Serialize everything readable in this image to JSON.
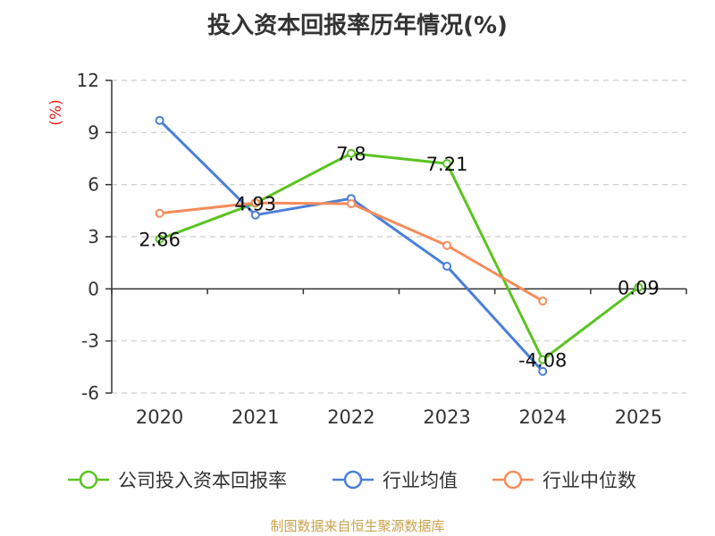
{
  "title": "投入资本回报率历年情况(%)",
  "source": "制图数据来自恒生聚源数据库",
  "chart_data": {
    "type": "line",
    "title": "投入资本回报率历年情况(%)",
    "ylabel": "(%)",
    "ylim": [
      -6,
      12
    ],
    "yticks": [
      12,
      9,
      6,
      3,
      0,
      -3,
      -6
    ],
    "categories": [
      "2020",
      "2021",
      "2022",
      "2023",
      "2024",
      "2025"
    ],
    "grid": true,
    "legend_position": "bottom",
    "series": [
      {
        "name": "公司投入资本回报率",
        "color": "#5bc322",
        "values": [
          2.86,
          4.93,
          7.8,
          7.21,
          -4.08,
          0.09
        ],
        "labels": [
          "2.86",
          "4.93",
          "7.8",
          "7.21",
          "-4.08",
          "0.09"
        ]
      },
      {
        "name": "行业均值",
        "color": "#4a7fd8",
        "values": [
          9.7,
          4.25,
          5.2,
          1.3,
          -4.75,
          null
        ]
      },
      {
        "name": "行业中位数",
        "color": "#f58c5b",
        "values": [
          4.35,
          4.95,
          4.9,
          2.5,
          -0.7,
          null
        ]
      }
    ]
  }
}
